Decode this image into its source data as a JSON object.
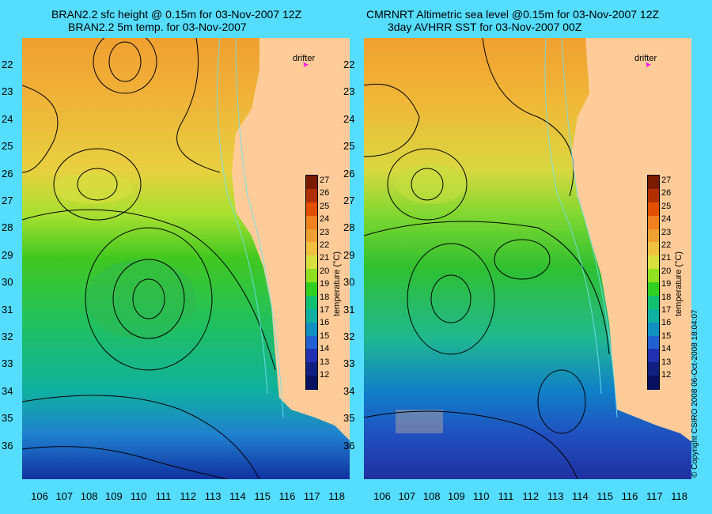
{
  "panels": [
    {
      "title_line1": "BRAN2.2 sfc height @ 0.15m for 03-Nov-2007 12Z",
      "title_line2": "BRAN2.2 5m temp. for 03-Nov-2007",
      "drifter_label": "drifter"
    },
    {
      "title_line1": "CMRNRT Altimetric sea level  @0.15m  for 03-Nov-2007 12Z",
      "title_line2": "3day AVHRR SST for 03-Nov-2007 00Z",
      "drifter_label": "drifter"
    }
  ],
  "lat_labels": [
    "22",
    "23",
    "24",
    "25",
    "26",
    "27",
    "28",
    "29",
    "30",
    "31",
    "32",
    "33",
    "34",
    "35",
    "36"
  ],
  "lon_labels": [
    "106",
    "107",
    "108",
    "109",
    "110",
    "111",
    "112",
    "113",
    "114",
    "115",
    "116",
    "117",
    "118"
  ],
  "colorbar": {
    "title": "temperature (°C)",
    "ticks": [
      "27",
      "26",
      "25",
      "24",
      "23",
      "22",
      "21",
      "20",
      "19",
      "18",
      "17",
      "16",
      "15",
      "14",
      "13",
      "12"
    ],
    "colors": [
      "#7a1a00",
      "#b23000",
      "#e05000",
      "#f08020",
      "#f0a030",
      "#f0c040",
      "#d8e040",
      "#90e020",
      "#30d020",
      "#10c070",
      "#10b0a0",
      "#1090c0",
      "#2060d0",
      "#2030b0",
      "#102080",
      "#081060"
    ]
  },
  "copyright": "© Copyright CSIRO 2008    06-Oct-2008 18:04:07",
  "colors": {
    "background": "#55ddff",
    "land": "#ffcc99",
    "drifter": "#ff00ff"
  }
}
